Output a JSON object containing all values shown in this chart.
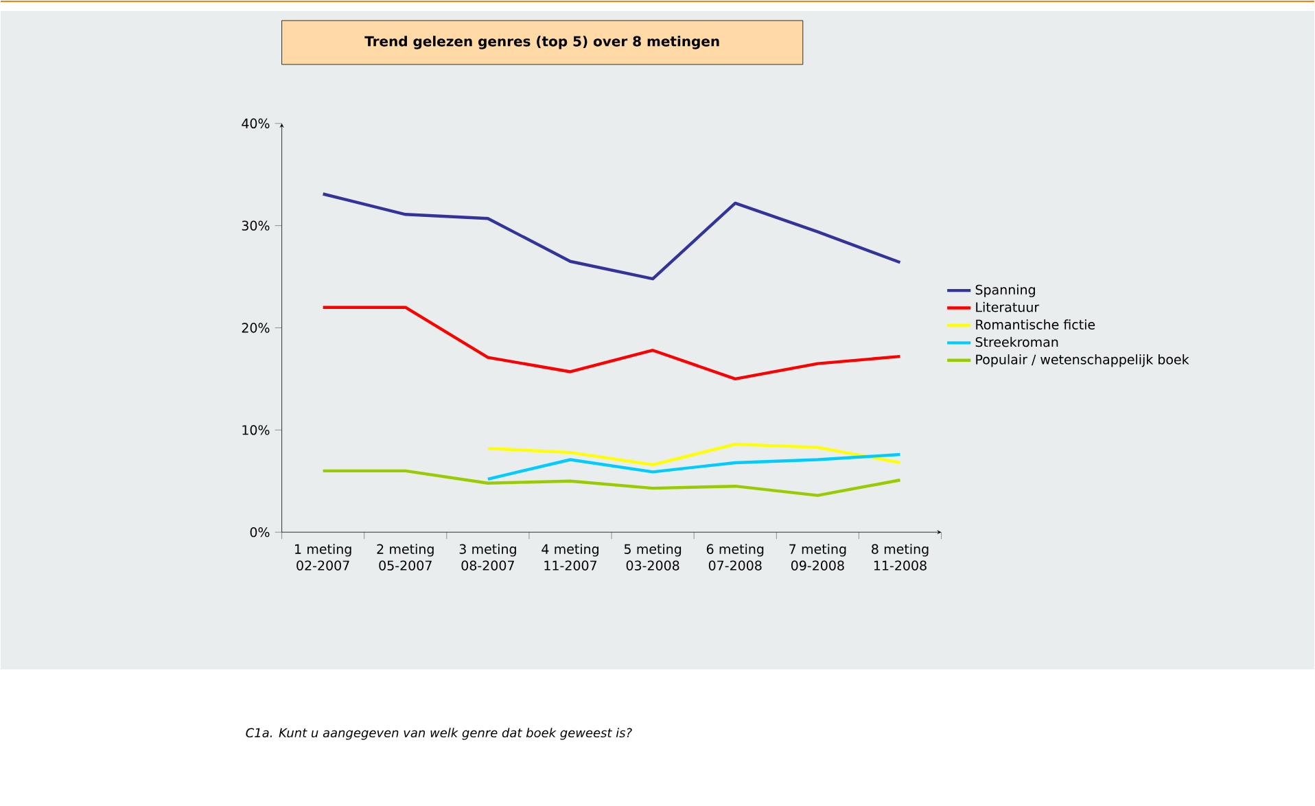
{
  "chart_data": {
    "type": "line",
    "title": "Trend gelezen genres (top 5) over 8 metingen",
    "categories": [
      "1 meting 02-2007",
      "2 meting 05-2007",
      "3 meting 08-2007",
      "4 meting 11-2007",
      "5 meting 03-2008",
      "6 meting 07-2008",
      "7 meting 09-2008",
      "8 meting 11-2008"
    ],
    "series": [
      {
        "name": "Spanning",
        "color": "#333399",
        "values": [
          33.1,
          31.1,
          30.7,
          26.5,
          24.8,
          32.2,
          29.4,
          26.4
        ]
      },
      {
        "name": "Literatuur",
        "color": "#ff0000",
        "values": [
          22.0,
          22.0,
          17.1,
          15.7,
          17.8,
          15.0,
          16.5,
          17.2
        ]
      },
      {
        "name": "Romantische fictie",
        "color": "#ffff00",
        "values": [
          null,
          null,
          8.2,
          7.8,
          6.6,
          8.6,
          8.3,
          6.8
        ]
      },
      {
        "name": "Streekroman",
        "color": "#00ccff",
        "values": [
          null,
          null,
          5.2,
          7.1,
          5.9,
          6.8,
          7.1,
          7.6
        ]
      },
      {
        "name": "Populair / wetenschappelijk boek",
        "color": "#99cc00",
        "values": [
          6.0,
          6.0,
          4.8,
          5.0,
          4.3,
          4.5,
          3.6,
          5.1
        ]
      }
    ],
    "ylim": [
      0,
      40
    ],
    "yticks": [
      {
        "value": 0,
        "label": "0%"
      },
      {
        "value": 10,
        "label": "10%"
      },
      {
        "value": 20,
        "label": "20%"
      },
      {
        "value": 30,
        "label": "30%"
      },
      {
        "value": 40,
        "label": "40%"
      }
    ],
    "legend": "right",
    "annotations": [
      "C1a. Kunt u aangegeven van welk genre dat boek geweest is?"
    ]
  }
}
